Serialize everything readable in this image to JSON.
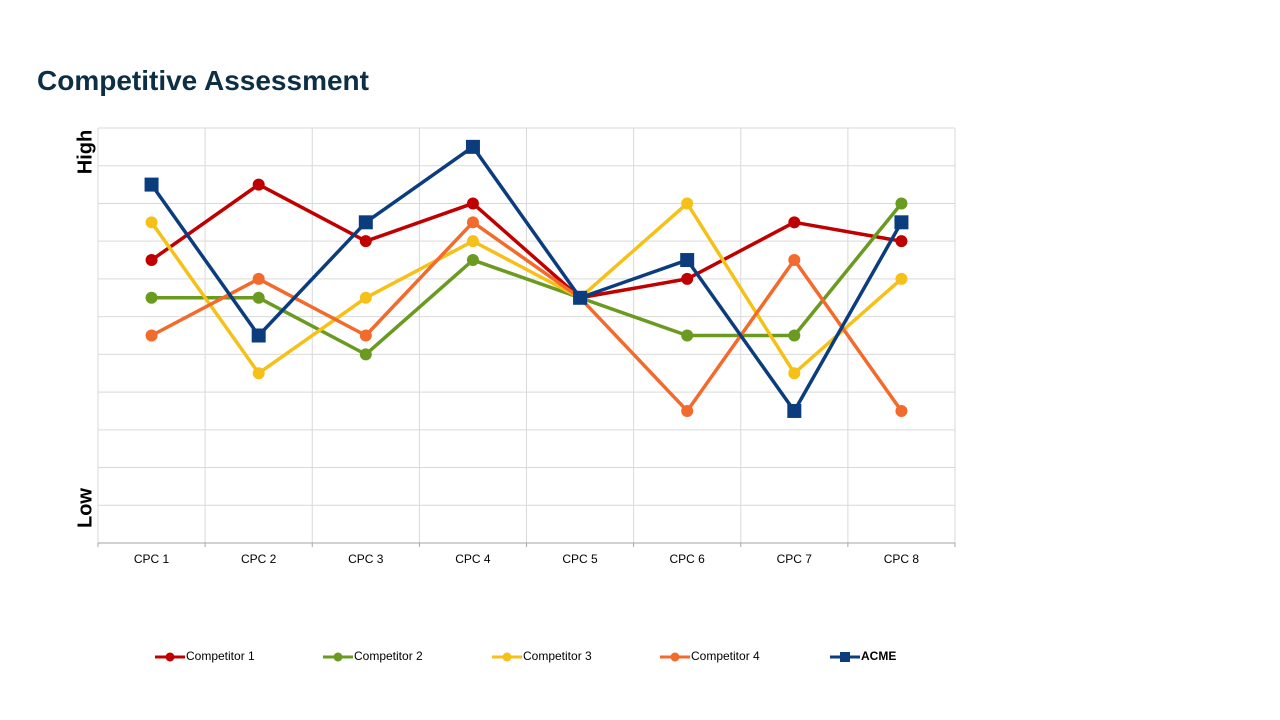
{
  "chart_data": {
    "type": "line",
    "title": "Competitive Assessment",
    "y_label_high": "High",
    "y_label_low": "Low",
    "categories": [
      "CPC 1",
      "CPC 2",
      "CPC 3",
      "CPC 4",
      "CPC 5",
      "CPC 6",
      "CPC 7",
      "CPC 8"
    ],
    "ylim": [
      0,
      11
    ],
    "yticks": [
      0,
      1,
      2,
      3,
      4,
      5,
      6,
      7,
      8,
      9,
      10,
      11
    ],
    "grid": true,
    "legend": "bottom",
    "series": [
      {
        "name": "Competitor 1",
        "color": "#c00000",
        "marker": "circle",
        "values": [
          7.5,
          9.5,
          8,
          9,
          6.5,
          7,
          8.5,
          8
        ]
      },
      {
        "name": "Competitor 2",
        "color": "#6a9a1f",
        "marker": "circle",
        "values": [
          6.5,
          6.5,
          5,
          7.5,
          6.5,
          5.5,
          5.5,
          9
        ]
      },
      {
        "name": "Competitor 3",
        "color": "#f5c118",
        "marker": "circle",
        "values": [
          8.5,
          4.5,
          6.5,
          8,
          6.5,
          9,
          4.5,
          7
        ]
      },
      {
        "name": "Competitor 4",
        "color": "#f26a2c",
        "marker": "circle",
        "values": [
          5.5,
          7,
          5.5,
          8.5,
          6.5,
          3.5,
          7.5,
          3.5
        ]
      },
      {
        "name": "ACME",
        "color": "#0b3d7e",
        "marker": "square",
        "values": [
          9.5,
          5.5,
          8.5,
          10.5,
          6.5,
          7.5,
          3.5,
          8.5
        ]
      }
    ]
  }
}
